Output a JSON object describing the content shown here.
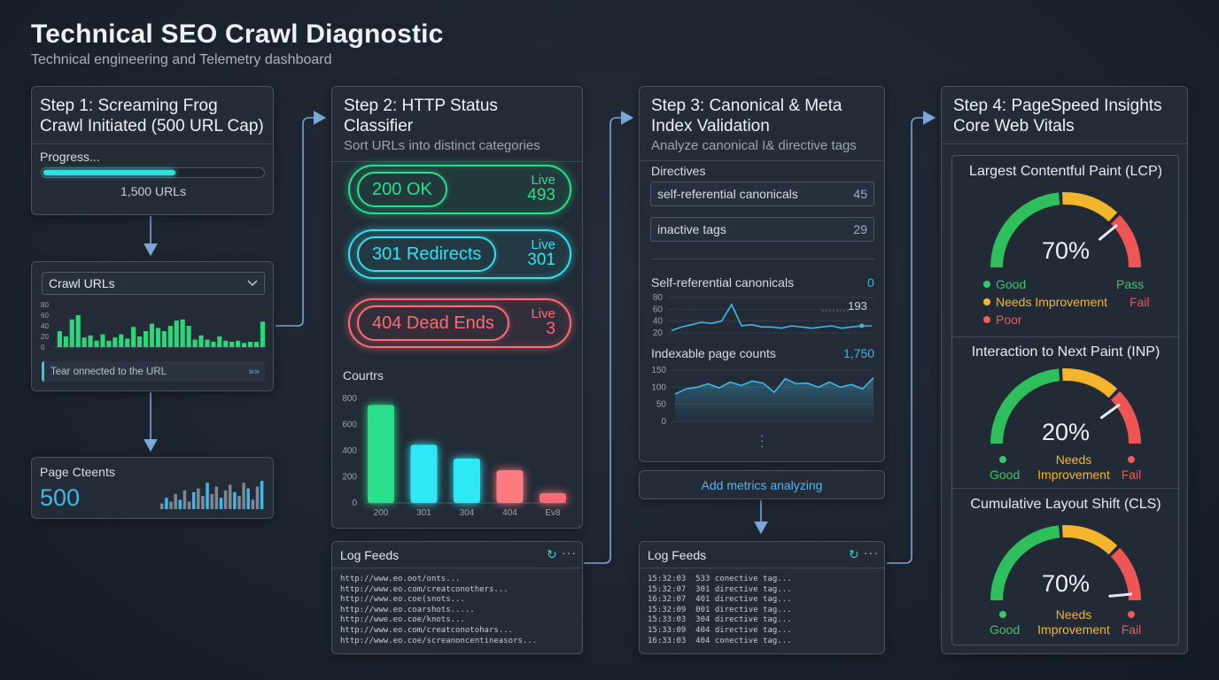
{
  "header": {
    "title": "Technical SEO Crawl Diagnostic",
    "subtitle": "Technical engineering and Telemetry dashboard"
  },
  "step1": {
    "title": "Step 1: Screaming Frog Crawl Initiated (500 URL Cap)",
    "progress_label": "Progress...",
    "progress_fraction": 0.6,
    "progress_count": "1,500 URLs",
    "crawl": {
      "select_value": "Crawl URLs",
      "y_ticks": [
        "80",
        "60",
        "40",
        "20",
        "0"
      ],
      "bar_values": [
        30,
        20,
        52,
        60,
        18,
        22,
        12,
        24,
        12,
        18,
        24,
        16,
        38,
        20,
        30,
        44,
        36,
        30,
        40,
        50,
        52,
        40,
        14,
        22,
        14,
        10,
        20,
        12,
        10,
        12,
        8,
        10,
        10,
        48
      ],
      "status_text": "Tear onnected to the URL",
      "status_icon": "double-chevron-right-icon"
    },
    "page_counts": {
      "label": "Page Cteents",
      "value": "500",
      "spark_values": [
        6,
        12,
        8,
        16,
        10,
        20,
        8,
        18,
        22,
        14,
        28,
        16,
        24,
        12,
        20,
        26,
        18,
        14,
        28,
        22,
        10,
        24,
        30
      ]
    }
  },
  "step2": {
    "title": "Step 2: HTTP Status Classifier",
    "subtitle": "Sort URLs into distinct categories",
    "statuses": [
      {
        "label": "200 OK",
        "live_label": "Live",
        "live_value": "493",
        "color": "#28e08a"
      },
      {
        "label": "301 Redirects",
        "live_label": "Live",
        "live_value": "301",
        "color": "#2fe3f2"
      },
      {
        "label": "404 Dead Ends",
        "live_label": "Live",
        "live_value": "3",
        "color": "#ff6b74"
      }
    ],
    "chart_title": "Courtrs",
    "chart_data": {
      "type": "bar",
      "title": "Courtrs",
      "categories": [
        "200",
        "301",
        "304",
        "404",
        "Ev8"
      ],
      "values": [
        750,
        445,
        340,
        250,
        75
      ],
      "colors": [
        "#28e08a",
        "#2ee8f5",
        "#2ee8f5",
        "#ff7b82",
        "#ff6b74"
      ],
      "ylim": [
        0,
        800
      ],
      "y_ticks": [
        "800",
        "600",
        "400",
        "200",
        "0"
      ]
    },
    "log": {
      "title": "Log Feeds",
      "lines": [
        "http://www.eo.oot/onts...",
        "http://www.eo.com/creatconothers...",
        "http://www.eo.coe(snots...",
        "http://www.eo.coarshots.....",
        "http://wwe.eo.coe/knots...",
        "http://www.eo.com/creatconotohars...",
        "http://www.eo.coe/screanoncentineasors..."
      ]
    }
  },
  "step3": {
    "title": "Step 3: Canonical & Meta Index Validation",
    "subtitle": "Analyze canonical I& directive tags",
    "directives_label": "Directives",
    "directives": [
      {
        "label": "self-referential canonicals",
        "value": "45"
      },
      {
        "label": "inactive tags",
        "value": "29"
      }
    ],
    "canonicals_chart": {
      "label": "Self-referential canonicals",
      "value": "0",
      "marker_value": "193",
      "y_ticks": [
        "80",
        "60",
        "40",
        "20"
      ],
      "values": [
        4,
        10,
        14,
        18,
        16,
        20,
        48,
        12,
        14,
        10,
        10,
        8,
        12,
        10,
        8,
        10,
        12,
        8,
        10,
        12,
        12
      ]
    },
    "indexable_chart": {
      "label": "Indexable page counts",
      "value": "1,750",
      "y_ticks": [
        "150",
        "100",
        "50",
        "0"
      ],
      "values": [
        80,
        95,
        100,
        110,
        98,
        115,
        105,
        118,
        112,
        85,
        125,
        110,
        112,
        100,
        115,
        100,
        108,
        95,
        128
      ]
    },
    "add_metrics_label": "Add metrics analyzing",
    "log": {
      "title": "Log Feeds",
      "lines": [
        "15:32:03  533 conective tag...",
        "15:32:07  301 directive tag...",
        "16:32:07  401 directive tag...",
        "15:32:09  001 directive tag...",
        "15:33:03  304 directive tag...",
        "15:33:09  404 directive tag...",
        "16:33:03  404 conective tag..."
      ]
    }
  },
  "step4": {
    "title": "Step 4: PageSpeed Insights Core Web Vitals",
    "gauges": [
      {
        "title": "Largest Contentful Paint (LCP)",
        "value": "70%",
        "needle_fraction": 0.78,
        "legend": [
          {
            "label": "Good",
            "color": "#37c86b"
          },
          {
            "label": "Needs Improvement",
            "color": "#f4b731"
          },
          {
            "label": "Poor",
            "color": "#ef5a5a"
          }
        ],
        "pass_label": "Pass",
        "fail_label": "Fail"
      },
      {
        "title": "Interaction to Next Paint (INP)",
        "value": "20%",
        "needle_fraction": 0.8,
        "labels": [
          "Good",
          "Needs Improvement",
          "Fail"
        ]
      },
      {
        "title": "Cumulative Layout Shift (CLS)",
        "value": "70%",
        "needle_fraction": 0.97,
        "labels": [
          "Good",
          "Needs Improvement",
          "Fail"
        ]
      }
    ]
  },
  "icons": {
    "refresh": "refresh-icon",
    "more": "more-horizontal-icon",
    "chevron": "chevron-down-icon",
    "vertical_more": "more-vertical-icon"
  }
}
